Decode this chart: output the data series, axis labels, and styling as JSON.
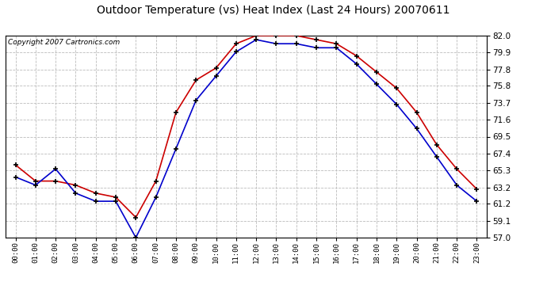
{
  "title": "Outdoor Temperature (vs) Heat Index (Last 24 Hours) 20070611",
  "copyright": "Copyright 2007 Cartronics.com",
  "hours": [
    0,
    1,
    2,
    3,
    4,
    5,
    6,
    7,
    8,
    9,
    10,
    11,
    12,
    13,
    14,
    15,
    16,
    17,
    18,
    19,
    20,
    21,
    22,
    23
  ],
  "hour_labels": [
    "00:00",
    "01:00",
    "02:00",
    "03:00",
    "04:00",
    "05:00",
    "06:00",
    "07:00",
    "08:00",
    "09:00",
    "10:00",
    "11:00",
    "12:00",
    "13:00",
    "14:00",
    "15:00",
    "16:00",
    "17:00",
    "18:00",
    "19:00",
    "20:00",
    "21:00",
    "22:00",
    "23:00"
  ],
  "temp_blue": [
    64.5,
    63.5,
    65.5,
    62.5,
    61.5,
    61.5,
    57.0,
    62.0,
    68.0,
    74.0,
    77.0,
    80.0,
    81.5,
    81.0,
    81.0,
    80.5,
    80.5,
    78.5,
    76.0,
    73.5,
    70.5,
    67.0,
    63.5,
    61.5
  ],
  "heat_red": [
    66.0,
    64.0,
    64.0,
    63.5,
    62.5,
    62.0,
    59.5,
    64.0,
    72.5,
    76.5,
    78.0,
    81.0,
    82.0,
    82.0,
    82.0,
    81.5,
    81.0,
    79.5,
    77.5,
    75.5,
    72.5,
    68.5,
    65.5,
    63.0
  ],
  "ylim": [
    57.0,
    82.0
  ],
  "yticks": [
    57.0,
    59.1,
    61.2,
    63.2,
    65.3,
    67.4,
    69.5,
    71.6,
    73.7,
    75.8,
    77.8,
    79.9,
    82.0
  ],
  "blue_color": "#0000cc",
  "red_color": "#cc0000",
  "bg_color": "#ffffff",
  "plot_bg_color": "#ffffff",
  "grid_color": "#bbbbbb",
  "title_fontsize": 10,
  "copyright_fontsize": 6.5
}
